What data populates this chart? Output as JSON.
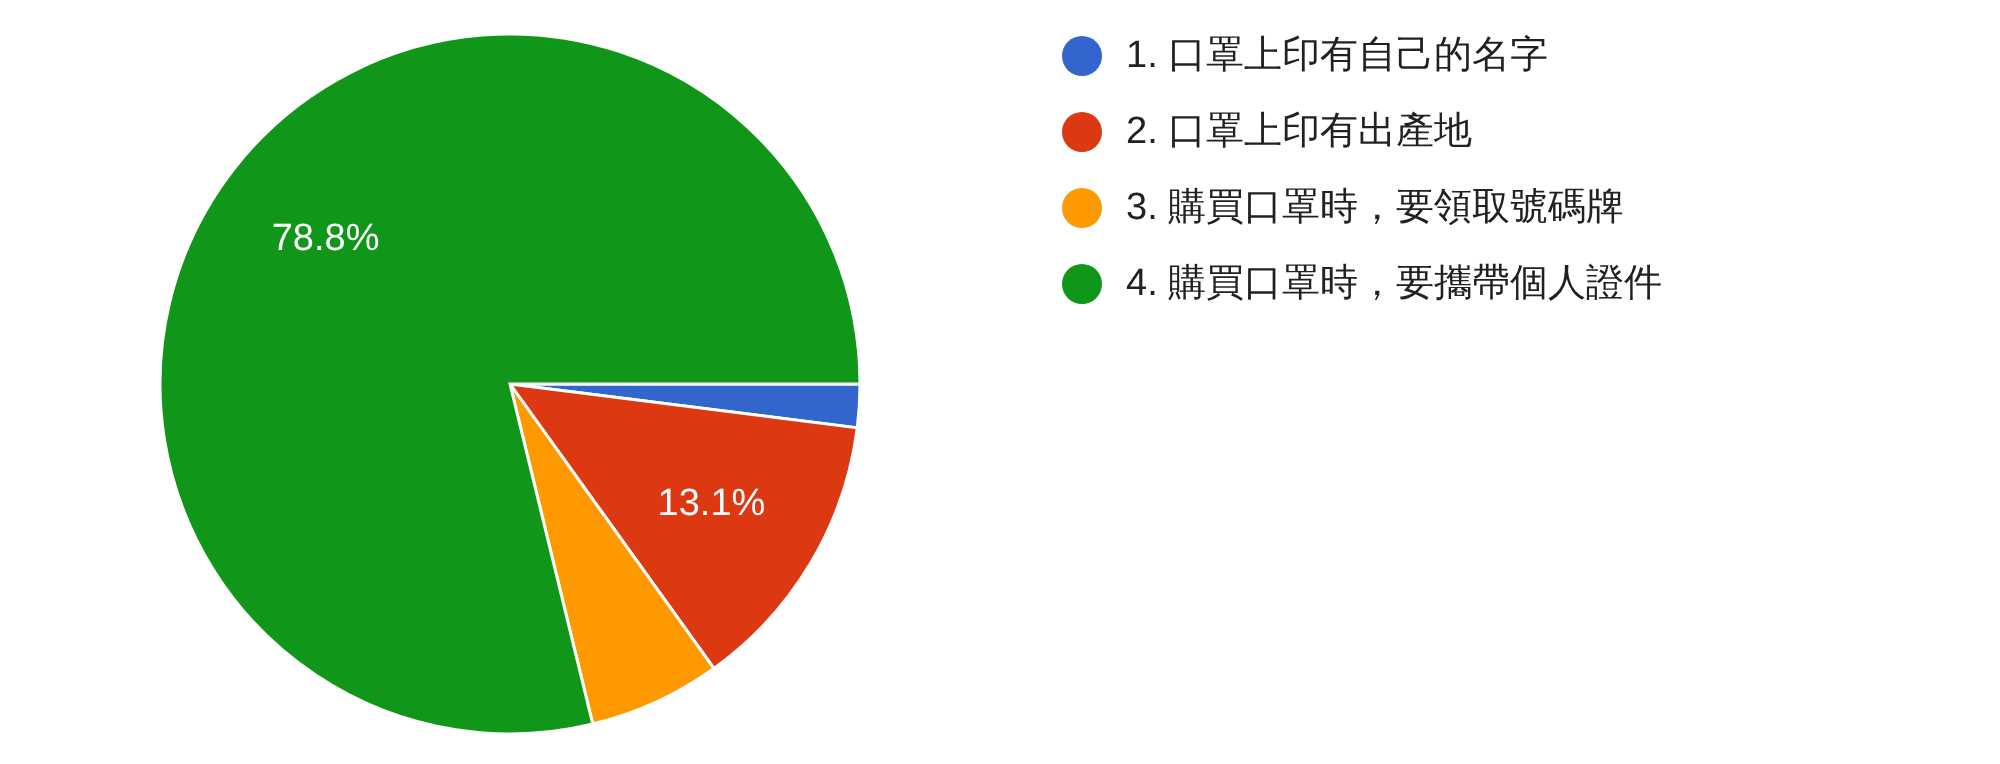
{
  "chart_data": {
    "type": "pie",
    "categories": [
      "1. 口罩上印有自己的名字",
      "2. 口罩上印有出產地",
      "3. 購買口罩時，要領取號碼牌",
      "4. 購買口罩時，要攜帶個人證件"
    ],
    "values": [
      2.0,
      13.1,
      6.1,
      78.8
    ],
    "colors": [
      "#3366cc",
      "#dc3912",
      "#ff9900",
      "#109618"
    ],
    "value_labels": [
      null,
      "13.1%",
      null,
      "78.8%"
    ],
    "legend": "right"
  }
}
